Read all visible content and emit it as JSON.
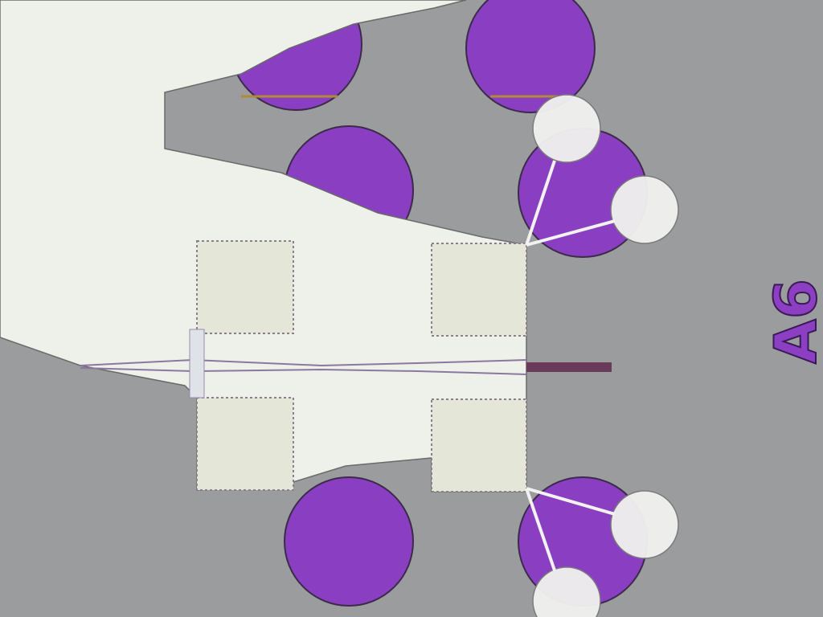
{
  "image": {
    "label": "A6"
  }
}
